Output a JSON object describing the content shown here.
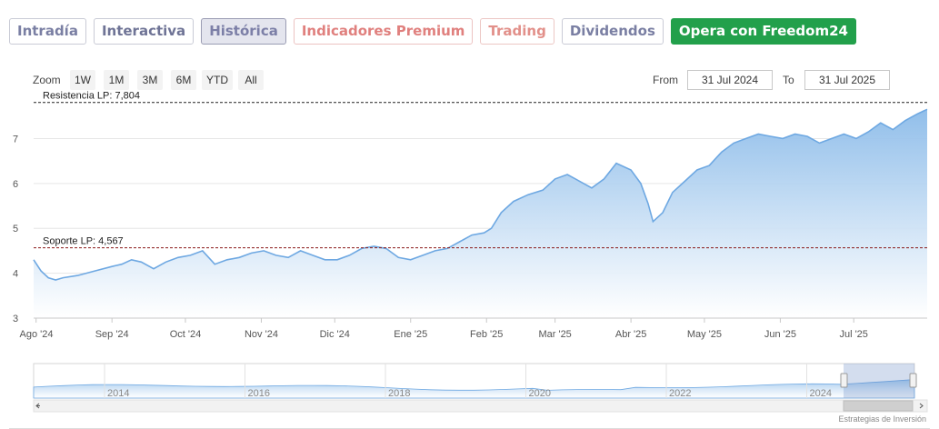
{
  "tabs": [
    {
      "label": "Intradía"
    },
    {
      "label": "Interactiva"
    },
    {
      "label": "Histórica"
    },
    {
      "label": "Indicadores Premium"
    },
    {
      "label": "Trading"
    },
    {
      "label": "Dividendos"
    },
    {
      "label": "Opera con Freedom24"
    }
  ],
  "toolbar": {
    "zoom_label": "Zoom",
    "zoom_buttons": [
      "1W",
      "1M",
      "3M",
      "6M",
      "YTD",
      "All"
    ],
    "from_label": "From",
    "from_value": "31 Jul 2024",
    "to_label": "To",
    "to_value": "31 Jul 2025"
  },
  "credit": "Estrategias de Inversión",
  "colors": {
    "line": "#6ea8e2",
    "fill_top": "#8bbbe9",
    "fill_bottom": "#ffffff",
    "resistance": "#222222",
    "support": "#8b1a1a",
    "grid": "#e6e6e6"
  },
  "chart_data": {
    "type": "area",
    "ylim": [
      3,
      7.9
    ],
    "y_ticks": [
      3,
      4,
      5,
      6,
      7
    ],
    "x_tick_labels": [
      "Ago '24",
      "Sep '24",
      "Oct '24",
      "Nov '24",
      "Dic '24",
      "Ene '25",
      "Feb '25",
      "Mar '25",
      "Abr '25",
      "May '25",
      "Jun '25",
      "Jul '25"
    ],
    "x_ticks": [
      "2024-08-01",
      "2024-09-01",
      "2024-10-01",
      "2024-11-01",
      "2024-12-01",
      "2025-01-01",
      "2025-02-01",
      "2025-03-01",
      "2025-04-01",
      "2025-05-01",
      "2025-06-01",
      "2025-07-01"
    ],
    "x_range": [
      "2024-07-31",
      "2025-07-31"
    ],
    "lines": [
      {
        "label": "Resistencia LP: 7,804",
        "value": 7.804,
        "style": "dashed"
      },
      {
        "label": "Soporte LP: 4,567",
        "value": 4.567,
        "style": "dashed"
      }
    ],
    "series": [
      {
        "x": [
          "2024-07-31",
          "2024-08-03",
          "2024-08-06",
          "2024-08-09",
          "2024-08-12",
          "2024-08-18",
          "2024-08-25",
          "2024-09-01",
          "2024-09-05",
          "2024-09-09",
          "2024-09-13",
          "2024-09-18",
          "2024-09-23",
          "2024-09-28",
          "2024-10-03",
          "2024-10-08",
          "2024-10-13",
          "2024-10-18",
          "2024-10-23",
          "2024-10-28",
          "2024-11-02",
          "2024-11-07",
          "2024-11-12",
          "2024-11-17",
          "2024-11-22",
          "2024-11-27",
          "2024-12-02",
          "2024-12-07",
          "2024-12-12",
          "2024-12-17",
          "2024-12-22",
          "2024-12-27",
          "2025-01-01",
          "2025-01-06",
          "2025-01-11",
          "2025-01-16",
          "2025-01-21",
          "2025-01-26",
          "2025-01-31",
          "2025-02-03",
          "2025-02-07",
          "2025-02-12",
          "2025-02-18",
          "2025-02-24",
          "2025-03-01",
          "2025-03-06",
          "2025-03-11",
          "2025-03-16",
          "2025-03-21",
          "2025-03-26",
          "2025-04-01",
          "2025-04-05",
          "2025-04-08",
          "2025-04-10",
          "2025-04-14",
          "2025-04-18",
          "2025-04-23",
          "2025-04-28",
          "2025-05-03",
          "2025-05-08",
          "2025-05-13",
          "2025-05-18",
          "2025-05-23",
          "2025-05-28",
          "2025-06-02",
          "2025-06-07",
          "2025-06-12",
          "2025-06-17",
          "2025-06-22",
          "2025-06-27",
          "2025-07-02",
          "2025-07-07",
          "2025-07-12",
          "2025-07-17",
          "2025-07-22",
          "2025-07-27",
          "2025-07-31"
        ],
        "y": [
          4.3,
          4.05,
          3.9,
          3.85,
          3.9,
          3.95,
          4.05,
          4.15,
          4.2,
          4.3,
          4.25,
          4.1,
          4.25,
          4.35,
          4.4,
          4.5,
          4.2,
          4.3,
          4.35,
          4.45,
          4.5,
          4.4,
          4.35,
          4.5,
          4.4,
          4.3,
          4.3,
          4.4,
          4.55,
          4.6,
          4.55,
          4.35,
          4.3,
          4.4,
          4.5,
          4.55,
          4.7,
          4.85,
          4.9,
          5.0,
          5.35,
          5.6,
          5.75,
          5.85,
          6.1,
          6.2,
          6.05,
          5.9,
          6.1,
          6.45,
          6.3,
          6.0,
          5.55,
          5.15,
          5.35,
          5.8,
          6.05,
          6.3,
          6.4,
          6.7,
          6.9,
          7.0,
          7.1,
          7.05,
          7.0,
          7.1,
          7.05,
          6.9,
          7.0,
          7.1,
          7.0,
          7.15,
          7.35,
          7.2,
          7.4,
          7.55,
          7.65
        ]
      }
    ]
  },
  "navigator": {
    "labels": [
      "2014",
      "2016",
      "2018",
      "2020",
      "2022",
      "2024"
    ]
  }
}
